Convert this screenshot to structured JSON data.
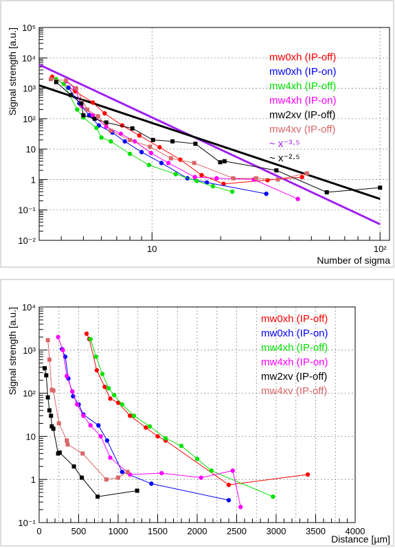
{
  "chart_data": [
    {
      "type": "line",
      "x_scale": "log",
      "y_scale": "log",
      "xlabel": "Number of sigma",
      "ylabel": "Signal strength [a.u.]",
      "xlim": [
        3.2,
        110
      ],
      "ylim": [
        0.01,
        100000
      ],
      "x_tick_labels": [
        {
          "value": 10,
          "label": "10"
        },
        {
          "value": 100,
          "label": "10²"
        }
      ],
      "y_tick_labels": [
        {
          "value": 0.01,
          "label": "10⁻²"
        },
        {
          "value": 0.1,
          "label": "10⁻¹"
        },
        {
          "value": 1,
          "label": "1"
        },
        {
          "value": 10,
          "label": "10"
        },
        {
          "value": 100,
          "label": "10²"
        },
        {
          "value": 1000,
          "label": "10³"
        },
        {
          "value": 10000,
          "label": "10⁴"
        },
        {
          "value": 100000,
          "label": "10⁵"
        }
      ],
      "grid": true,
      "legend_position": "top-right",
      "series": [
        {
          "name": "mw0xh (IP-off)",
          "color": "#ff0000",
          "marker": "circle",
          "points": [
            [
              3.65,
              2400
            ],
            [
              4.6,
              800
            ],
            [
              5.5,
              340
            ],
            [
              6.2,
              150
            ],
            [
              7.4,
              60
            ],
            [
              8.8,
              28
            ],
            [
              10.8,
              11.5
            ],
            [
              13.3,
              4.5
            ],
            [
              16.5,
              1.4
            ],
            [
              20.6,
              0.72
            ],
            [
              32.1,
              0.95
            ],
            [
              45.5,
              1.2
            ]
          ]
        },
        {
          "name": "mw0xh (IP-on)",
          "color": "#0000ff",
          "marker": "circle",
          "points": [
            [
              4.3,
              1050
            ],
            [
              4.8,
              320
            ],
            [
              5.3,
              130
            ],
            [
              5.85,
              60
            ],
            [
              6.7,
              35
            ],
            [
              7.6,
              18
            ],
            [
              9.0,
              8
            ],
            [
              11.0,
              3.5
            ],
            [
              14.3,
              1.1
            ],
            [
              17.4,
              0.8
            ],
            [
              31.7,
              0.34
            ]
          ]
        },
        {
          "name": "mw4xh (IP-off)",
          "color": "#00e000",
          "marker": "circle",
          "points": [
            [
              3.8,
              2000
            ],
            [
              4.1,
              1400
            ],
            [
              4.7,
              200
            ],
            [
              5.0,
              110
            ],
            [
              5.7,
              50
            ],
            [
              6.0,
              24
            ],
            [
              6.6,
              18
            ],
            [
              8.0,
              7
            ],
            [
              9.7,
              3
            ],
            [
              12.7,
              1.5
            ],
            [
              15.7,
              0.9
            ],
            [
              18.5,
              0.6
            ],
            [
              22.5,
              0.4
            ]
          ]
        },
        {
          "name": "mw4xh (IP-on)",
          "color": "#ff00ff",
          "marker": "circle",
          "points": [
            [
              4.2,
              1700
            ],
            [
              4.6,
              1000
            ],
            [
              4.9,
              270
            ],
            [
              5.5,
              130
            ],
            [
              6.3,
              55
            ],
            [
              7.3,
              32
            ],
            [
              8.4,
              18
            ],
            [
              9.9,
              7.5
            ],
            [
              11.8,
              3.5
            ],
            [
              15.4,
              1.2
            ],
            [
              19.2,
              1.1
            ],
            [
              27.9,
              1.0
            ],
            [
              43.6,
              0.23
            ]
          ]
        },
        {
          "name": "mw2xv (IP-off)",
          "color": "#000000",
          "marker": "square",
          "points": [
            [
              3.8,
              1600
            ],
            [
              4.4,
              600
            ],
            [
              4.9,
              320
            ],
            [
              5.0,
              130
            ],
            [
              5.6,
              100
            ],
            [
              6.3,
              75
            ],
            [
              8.2,
              48
            ],
            [
              10.1,
              20
            ],
            [
              12.3,
              18
            ],
            [
              15.5,
              15
            ],
            [
              19.9,
              3.7
            ],
            [
              20.8,
              4
            ],
            [
              35.1,
              2
            ],
            [
              58.4,
              0.38
            ],
            [
              100,
              0.54
            ]
          ]
        },
        {
          "name": "mw4xv (IP-off)",
          "color": "#d96666",
          "marker": "square",
          "points": [
            [
              3.6,
              2000
            ],
            [
              4.2,
              1800
            ],
            [
              4.65,
              1000
            ],
            [
              5.2,
              200
            ],
            [
              5.8,
              120
            ],
            [
              6.6,
              40
            ],
            [
              8.0,
              20
            ],
            [
              9.8,
              12
            ],
            [
              12.1,
              5
            ],
            [
              15.3,
              3.5
            ],
            [
              22.7,
              1.1
            ],
            [
              28.6,
              1.1
            ],
            [
              35.6,
              1.0
            ],
            [
              47.8,
              1.6
            ]
          ]
        }
      ],
      "fits": [
        {
          "name": "~ x⁻³·⁵",
          "color": "#a020f0",
          "exponent": -3.5,
          "points": [
            [
              3.2,
              6000
            ],
            [
              100,
              0.034
            ]
          ]
        },
        {
          "name": "~ x⁻²·⁵",
          "color": "#000000",
          "exponent": -2.5,
          "points": [
            [
              3.2,
              1250
            ],
            [
              100,
              0.23
            ]
          ]
        }
      ]
    },
    {
      "type": "line",
      "x_scale": "linear",
      "y_scale": "log",
      "xlabel": "Distance [µm]",
      "ylabel": "Signal strength [a.u.]",
      "xlim": [
        0,
        4000
      ],
      "ylim": [
        0.1,
        10000
      ],
      "x_tick_labels": [
        {
          "value": 0,
          "label": "0"
        },
        {
          "value": 500,
          "label": "500"
        },
        {
          "value": 1000,
          "label": "1000"
        },
        {
          "value": 1500,
          "label": "1500"
        },
        {
          "value": 2000,
          "label": "2000"
        },
        {
          "value": 2500,
          "label": "2500"
        },
        {
          "value": 3000,
          "label": "3000"
        },
        {
          "value": 3500,
          "label": "3500"
        },
        {
          "value": 4000,
          "label": "4000"
        }
      ],
      "y_tick_labels": [
        {
          "value": 0.1,
          "label": "10⁻¹"
        },
        {
          "value": 1,
          "label": "1"
        },
        {
          "value": 10,
          "label": "10"
        },
        {
          "value": 100,
          "label": "10²"
        },
        {
          "value": 1000,
          "label": "10³"
        },
        {
          "value": 10000,
          "label": "10⁴"
        }
      ],
      "grid": true,
      "legend_position": "top-right",
      "series": [
        {
          "name": "mw0xh (IP-off)",
          "color": "#ff0000",
          "marker": "circle",
          "points": [
            [
              600,
              2400
            ],
            [
              635,
              1800
            ],
            [
              730,
              340
            ],
            [
              830,
              140
            ],
            [
              900,
              75
            ],
            [
              1000,
              60
            ],
            [
              1150,
              30
            ],
            [
              1350,
              16
            ],
            [
              1500,
              10
            ],
            [
              1600,
              8
            ],
            [
              2400,
              0.75
            ],
            [
              3400,
              1.3
            ]
          ]
        },
        {
          "name": "mw0xh (IP-on)",
          "color": "#0000ff",
          "marker": "circle",
          "points": [
            [
              290,
              1050
            ],
            [
              330,
              700
            ],
            [
              370,
              220
            ],
            [
              430,
              85
            ],
            [
              500,
              55
            ],
            [
              560,
              32
            ],
            [
              750,
              18
            ],
            [
              860,
              8
            ],
            [
              1050,
              1.5
            ],
            [
              1420,
              0.8
            ],
            [
              2400,
              0.33
            ]
          ]
        },
        {
          "name": "mw4xh (IP-off)",
          "color": "#00e000",
          "marker": "circle",
          "points": [
            [
              650,
              1800
            ],
            [
              720,
              700
            ],
            [
              800,
              280
            ],
            [
              880,
              130
            ],
            [
              950,
              90
            ],
            [
              1050,
              55
            ],
            [
              1200,
              30
            ],
            [
              1400,
              17
            ],
            [
              1600,
              9
            ],
            [
              1800,
              6
            ],
            [
              2000,
              3
            ],
            [
              2180,
              1.6
            ],
            [
              2960,
              0.4
            ]
          ]
        },
        {
          "name": "mw4xh (IP-on)",
          "color": "#ff00ff",
          "marker": "circle",
          "points": [
            [
              240,
              2000
            ],
            [
              300,
              1000
            ],
            [
              350,
              250
            ],
            [
              420,
              110
            ],
            [
              480,
              55
            ],
            [
              560,
              30
            ],
            [
              650,
              18
            ],
            [
              780,
              10
            ],
            [
              900,
              3.2
            ],
            [
              1150,
              1.3
            ],
            [
              1550,
              1.4
            ],
            [
              2050,
              1.1
            ],
            [
              2450,
              1.6
            ],
            [
              2550,
              0.23
            ]
          ]
        },
        {
          "name": "mw2xv (IP-off)",
          "color": "#000000",
          "marker": "square",
          "points": [
            [
              70,
              380
            ],
            [
              90,
              260
            ],
            [
              110,
              80
            ],
            [
              130,
              40
            ],
            [
              150,
              30
            ],
            [
              160,
              17
            ],
            [
              180,
              15
            ],
            [
              240,
              4
            ],
            [
              260,
              4.2
            ],
            [
              440,
              2.0
            ],
            [
              540,
              1.1
            ],
            [
              740,
              0.4
            ],
            [
              1240,
              0.55
            ]
          ]
        },
        {
          "name": "mw4xv (IP-off)",
          "color": "#d96666",
          "marker": "square",
          "points": [
            [
              110,
              1700
            ],
            [
              130,
              600
            ],
            [
              160,
              120
            ],
            [
              180,
              115
            ],
            [
              250,
              20
            ],
            [
              350,
              8
            ],
            [
              360,
              6.5
            ],
            [
              550,
              4
            ],
            [
              850,
              1.0
            ],
            [
              1000,
              1.1
            ],
            [
              1120,
              1.5
            ]
          ]
        }
      ]
    }
  ]
}
